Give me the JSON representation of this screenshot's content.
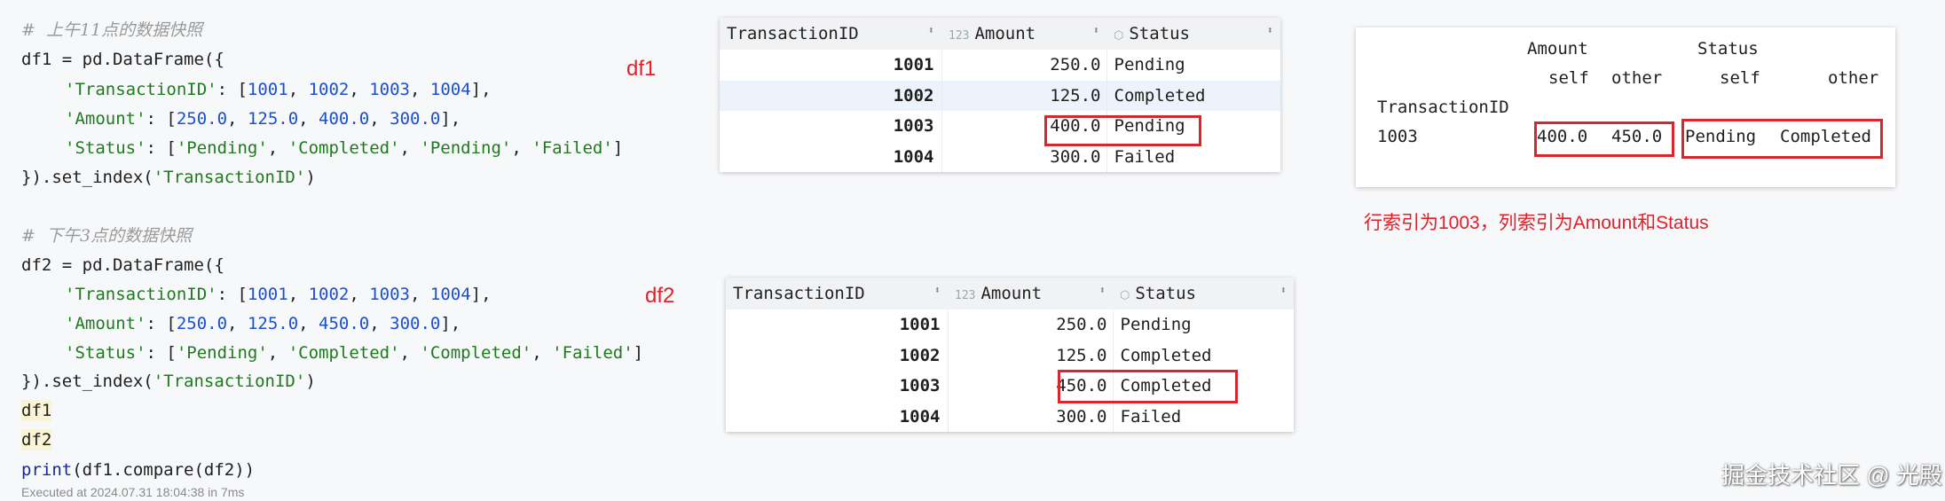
{
  "code": {
    "comment1": "#  上午11点的数据快照",
    "comment2": "#  下午3点的数据快照",
    "df1": {
      "assign": "df1 = pd.DataFrame({",
      "ids": [
        "1001",
        "1002",
        "1003",
        "1004"
      ],
      "amounts": [
        "250.0",
        "125.0",
        "400.0",
        "300.0"
      ],
      "statuses": [
        "'Pending'",
        "'Completed'",
        "'Pending'",
        "'Failed'"
      ]
    },
    "df2": {
      "assign": "df2 = pd.DataFrame({",
      "ids": [
        "1001",
        "1002",
        "1003",
        "1004"
      ],
      "amounts": [
        "250.0",
        "125.0",
        "450.0",
        "300.0"
      ],
      "statuses": [
        "'Pending'",
        "'Completed'",
        "'Completed'",
        "'Failed'"
      ]
    },
    "key_tid": "'TransactionID'",
    "key_amount": "'Amount'",
    "key_status": "'Status'",
    "set_index_prefix": "}).set_index(",
    "set_index_arg": "'TransactionID'",
    "line_df1": "df1",
    "line_df2": "df2",
    "print_kw": "print",
    "print_rest": "(df1.compare(df2))",
    "executed": "Executed at 2024.07.31 18:04:38 in 7ms"
  },
  "labels": {
    "df1": "df1",
    "df2": "df2",
    "note": "行索引为1003，列索引为Amount和Status",
    "watermark": "掘金技术社区 @ 光殿"
  },
  "table_headers": {
    "index": "TransactionID",
    "amount": "Amount",
    "status": "Status",
    "amount_icon": "123"
  },
  "table1": {
    "rows": [
      {
        "id": "1001",
        "amount": "250.0",
        "status": "Pending"
      },
      {
        "id": "1002",
        "amount": "125.0",
        "status": "Completed"
      },
      {
        "id": "1003",
        "amount": "400.0",
        "status": "Pending"
      },
      {
        "id": "1004",
        "amount": "300.0",
        "status": "Failed"
      }
    ]
  },
  "table2": {
    "rows": [
      {
        "id": "1001",
        "amount": "250.0",
        "status": "Pending"
      },
      {
        "id": "1002",
        "amount": "125.0",
        "status": "Completed"
      },
      {
        "id": "1003",
        "amount": "450.0",
        "status": "Completed"
      },
      {
        "id": "1004",
        "amount": "300.0",
        "status": "Failed"
      }
    ]
  },
  "compare": {
    "col1": "Amount",
    "col2": "Status",
    "self": "self",
    "other": "other",
    "index_name": "TransactionID",
    "row_id": "1003",
    "amount_self": "400.0",
    "amount_other": "450.0",
    "status_self": "Pending",
    "status_other": "Completed"
  },
  "colors": {
    "highlight": "#d9262e",
    "string": "#1f7a1f",
    "number": "#1a4fd0"
  }
}
